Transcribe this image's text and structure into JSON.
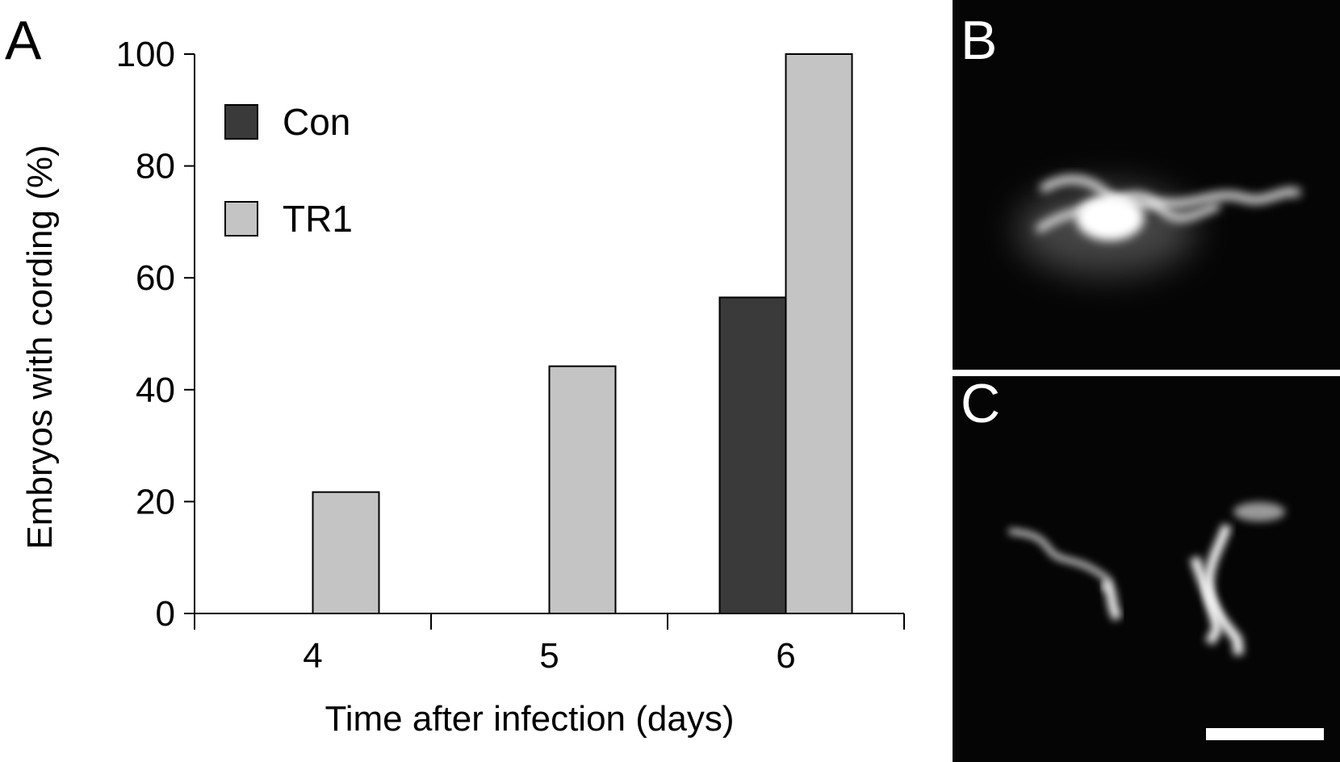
{
  "panel_labels": {
    "a": "A",
    "b": "B",
    "c": "C"
  },
  "colors": {
    "con": "#3a3a3a",
    "tr1": "#c4c4c4",
    "axis": "#000000",
    "micrograph_bg": "#050505"
  },
  "chart_data": {
    "type": "bar",
    "xlabel": "Time after infection (days)",
    "ylabel": "Embryos with cording (%)",
    "categories": [
      "4",
      "5",
      "6"
    ],
    "ylim": [
      0,
      100
    ],
    "yticks": [
      0,
      20,
      40,
      60,
      80,
      100
    ],
    "series": [
      {
        "name": "Con",
        "values": [
          0,
          0,
          56.5
        ]
      },
      {
        "name": "TR1",
        "values": [
          21.7,
          44.2,
          100
        ]
      }
    ],
    "legend_position": "top-left",
    "grid": false
  },
  "micrographs": [
    {
      "panel": "B",
      "description_icon": "fluorescent-cord-icon"
    },
    {
      "panel": "C",
      "description_icon": "fluorescent-cord-icon"
    }
  ]
}
